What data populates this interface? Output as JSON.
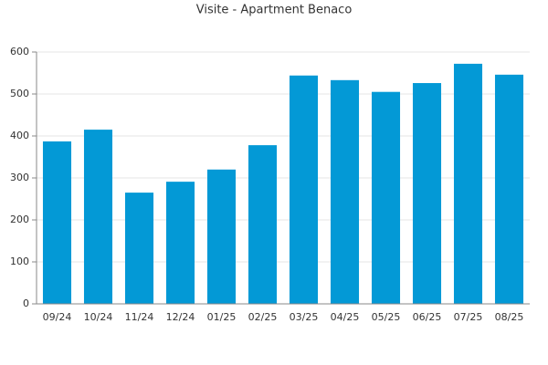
{
  "chart_data": {
    "type": "bar",
    "title": "Visite - Apartment Benaco",
    "categories": [
      "09/24",
      "10/24",
      "11/24",
      "12/24",
      "01/25",
      "02/25",
      "03/25",
      "04/25",
      "05/25",
      "06/25",
      "07/25",
      "08/25"
    ],
    "values": [
      387,
      415,
      265,
      291,
      320,
      378,
      544,
      533,
      505,
      526,
      572,
      546
    ],
    "color": "#0399d6",
    "ylim": [
      0,
      600
    ],
    "yticks": [
      0,
      100,
      200,
      300,
      400,
      500,
      600
    ],
    "grid": true
  }
}
